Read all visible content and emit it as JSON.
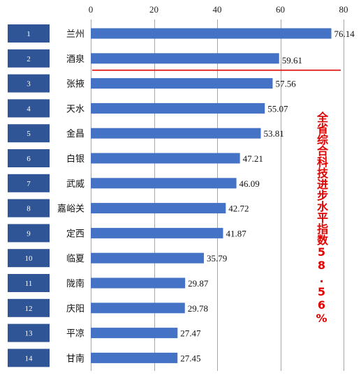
{
  "chart_data": {
    "type": "bar",
    "orientation": "horizontal",
    "categories": [
      "兰州",
      "酒泉",
      "张掖",
      "天水",
      "金昌",
      "白银",
      "武威",
      "嘉峪关",
      "定西",
      "临夏",
      "陇南",
      "庆阳",
      "平凉",
      "甘南"
    ],
    "ranks": [
      "1",
      "2",
      "3",
      "4",
      "5",
      "6",
      "7",
      "8",
      "9",
      "10",
      "11",
      "12",
      "13",
      "14"
    ],
    "values": [
      76.14,
      59.61,
      57.56,
      55.07,
      53.81,
      47.21,
      46.09,
      42.72,
      41.87,
      35.79,
      29.87,
      29.78,
      27.47,
      27.45
    ],
    "value_labels": [
      "76.14",
      "59.61",
      "57.56",
      "55.07",
      "53.81",
      "47.21",
      "46.09",
      "42.72",
      "41.87",
      "35.79",
      "29.87",
      "29.78",
      "27.47",
      "27.45"
    ],
    "xlim": [
      0,
      80
    ],
    "xticks": [
      "0",
      "20",
      "40",
      "60",
      "80"
    ],
    "xtick_values": [
      0,
      20,
      40,
      60,
      80
    ],
    "grid": true,
    "axis_position": "top",
    "reference_line": {
      "value": 58.56,
      "after_category_index": 1,
      "color": "#e00000"
    },
    "annotation": "全省综合科技进步水平指数58.56%",
    "bar_color": "#4472c4",
    "rank_box_color": "#2f5597"
  }
}
